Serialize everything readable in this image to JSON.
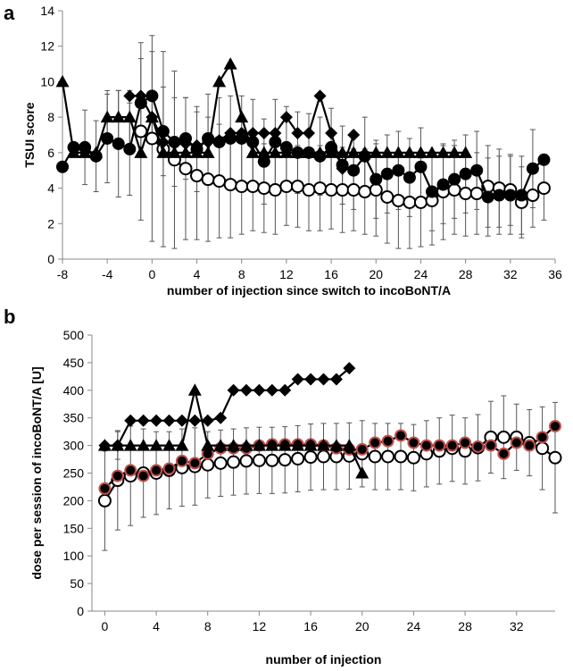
{
  "chart_data": [
    {
      "panel": "a",
      "type": "line",
      "title": "",
      "xlabel": "number of injection since switch to incoBoNT/A",
      "ylabel": "TSUI score",
      "xlim": [
        -8,
        36
      ],
      "ylim": [
        0,
        14
      ],
      "x_ticks": [
        "-8",
        "-4",
        "0",
        "4",
        "8",
        "12",
        "16",
        "20",
        "24",
        "28",
        "32",
        "36"
      ],
      "y_ticks": [
        "0",
        "2",
        "4",
        "6",
        "8",
        "10",
        "12",
        "14"
      ],
      "grid": false,
      "legend": "none",
      "series": [
        {
          "name": "open circles",
          "marker": "circle-open",
          "x": [
            -1,
            0,
            1,
            2,
            3,
            4,
            5,
            6,
            7,
            8,
            9,
            10,
            11,
            12,
            13,
            14,
            15,
            16,
            17,
            18,
            19,
            20,
            21,
            22,
            23,
            24,
            25,
            26,
            27,
            28,
            29,
            30,
            31,
            32,
            33,
            34,
            35
          ],
          "values": [
            7.2,
            6.8,
            6.2,
            5.6,
            5.1,
            4.7,
            4.5,
            4.4,
            4.2,
            4.1,
            4.1,
            4.0,
            3.9,
            4.1,
            4.1,
            3.9,
            4.0,
            3.9,
            3.9,
            3.9,
            3.8,
            3.9,
            3.5,
            3.3,
            3.2,
            3.2,
            3.3,
            3.8,
            3.9,
            3.7,
            3.7,
            4.1,
            4.0,
            3.9,
            3.2,
            3.6,
            4.0
          ],
          "error": [
            5.0,
            5.8,
            5.5,
            5.0,
            4.0,
            3.6,
            3.5,
            3.2,
            3.0,
            2.7,
            2.5,
            2.5,
            2.5,
            2.2,
            2.3,
            2.3,
            2.4,
            2.2,
            2.4,
            2.3,
            2.4,
            2.6,
            2.6,
            2.7,
            2.6,
            2.5,
            2.5,
            2.7,
            2.5,
            2.4,
            2.3,
            2.3,
            2.2,
            2.0,
            2.0,
            1.8,
            1.8
          ]
        },
        {
          "name": "filled circles",
          "marker": "circle-filled",
          "x": [
            -8,
            -7,
            -6,
            -5,
            -4,
            -3,
            -2,
            -1,
            0,
            1,
            2,
            3,
            4,
            5,
            6,
            7,
            8,
            9,
            10,
            11,
            12,
            13,
            14,
            15,
            16,
            17,
            18,
            19,
            20,
            21,
            22,
            23,
            24,
            25,
            26,
            27,
            28,
            29,
            30,
            31,
            32,
            33,
            34,
            35
          ],
          "values": [
            5.2,
            6.3,
            6.3,
            5.8,
            6.8,
            6.5,
            6.2,
            8.8,
            9.2,
            7.2,
            6.6,
            6.8,
            6.2,
            6.8,
            6.6,
            6.8,
            6.8,
            6.6,
            5.5,
            6.6,
            6.3,
            6.0,
            6.0,
            5.8,
            6.3,
            5.3,
            5.0,
            5.8,
            4.5,
            4.8,
            5.0,
            4.6,
            5.2,
            3.8,
            4.2,
            4.5,
            4.8,
            5.0,
            3.5,
            3.6,
            3.6,
            3.6,
            5.1,
            5.6
          ],
          "error": [
            0,
            0,
            2.1,
            2.0,
            2.5,
            3.0,
            2.6,
            2.5,
            2.5,
            2.5,
            2.5,
            2.3,
            2.4,
            2.5,
            2.5,
            2.4,
            2.4,
            2.4,
            2.4,
            2.4,
            2.3,
            2.3,
            2.2,
            2.2,
            2.2,
            2.2,
            2.2,
            2.2,
            2.2,
            2.2,
            2.2,
            2.2,
            2.2,
            2.2,
            2.2,
            2.2,
            2.2,
            2.2,
            2.2,
            2.2,
            2.2,
            2.2,
            2.2,
            0
          ]
        },
        {
          "name": "filled diamonds",
          "marker": "diamond",
          "x": [
            -2,
            -1,
            0,
            1,
            2,
            3,
            4,
            5,
            6,
            7,
            8,
            9,
            10,
            11,
            12,
            13,
            14,
            15,
            16,
            17,
            18
          ],
          "values": [
            9.2,
            9.2,
            8.0,
            6.6,
            6.5,
            6.5,
            6.4,
            6.6,
            6.7,
            7.1,
            7.1,
            7.1,
            7.1,
            7.1,
            8.0,
            7.1,
            7.1,
            9.2,
            7.1,
            5.1,
            7.0
          ],
          "error": []
        },
        {
          "name": "filled triangles",
          "marker": "triangle",
          "x": [
            -8,
            -7,
            -6,
            -5,
            -4,
            -3,
            -2,
            -1,
            0,
            1,
            2,
            3,
            4,
            5,
            6,
            7,
            8,
            9,
            10,
            11,
            12,
            13,
            14,
            15,
            16,
            17,
            18,
            19,
            20,
            21,
            22,
            23,
            24,
            25,
            26,
            27,
            28
          ],
          "values": [
            10.0,
            6.0,
            6.0,
            6.0,
            8.0,
            8.0,
            8.0,
            6.0,
            8.0,
            6.0,
            6.0,
            6.0,
            6.0,
            6.0,
            10.0,
            11.0,
            8.0,
            6.0,
            6.0,
            6.0,
            6.0,
            6.0,
            6.0,
            6.0,
            6.0,
            6.0,
            6.0,
            6.0,
            6.0,
            6.0,
            6.0,
            6.0,
            6.0,
            6.0,
            6.0,
            6.0,
            6.0
          ],
          "error": [
            0,
            0,
            0,
            0,
            1.5,
            1.5,
            1.5,
            0,
            0,
            0,
            0,
            0,
            0,
            0,
            0,
            0,
            0,
            0,
            0,
            0,
            0,
            0,
            0,
            0,
            0,
            0,
            0,
            0,
            0,
            0,
            0,
            0,
            0,
            0,
            0,
            0,
            0
          ]
        }
      ]
    },
    {
      "panel": "b",
      "type": "line",
      "title": "",
      "xlabel": "number of injection",
      "ylabel": "dose per session of incoBoNT/A [U]",
      "xlim": [
        -1,
        35
      ],
      "ylim": [
        0,
        500
      ],
      "x_ticks": [
        "0",
        "4",
        "8",
        "12",
        "16",
        "20",
        "24",
        "28",
        "32"
      ],
      "y_ticks": [
        "0",
        "50",
        "100",
        "150",
        "200",
        "250",
        "300",
        "350",
        "400",
        "450",
        "500"
      ],
      "grid": false,
      "legend": "none",
      "series": [
        {
          "name": "open circles",
          "marker": "circle-open",
          "x": [
            0,
            1,
            2,
            3,
            4,
            5,
            6,
            7,
            8,
            9,
            10,
            11,
            12,
            13,
            14,
            15,
            16,
            17,
            18,
            19,
            20,
            21,
            22,
            23,
            24,
            25,
            26,
            27,
            28,
            29,
            30,
            31,
            32,
            33,
            34,
            35
          ],
          "values": [
            200,
            237,
            245,
            250,
            250,
            255,
            260,
            262,
            265,
            268,
            270,
            272,
            273,
            273,
            274,
            276,
            279,
            280,
            280,
            281,
            285,
            280,
            280,
            280,
            278,
            285,
            290,
            295,
            290,
            296,
            315,
            315,
            315,
            305,
            295,
            278
          ],
          "error": [
            90,
            90,
            90,
            80,
            75,
            70,
            70,
            70,
            60,
            60,
            60,
            60,
            60,
            60,
            60,
            60,
            60,
            60,
            60,
            60,
            60,
            60,
            60,
            60,
            60,
            60,
            60,
            60,
            60,
            60,
            65,
            75,
            60,
            60,
            75,
            100
          ]
        },
        {
          "name": "red-ringed filled circles",
          "marker": "circle-red",
          "x": [
            0,
            1,
            2,
            3,
            4,
            5,
            6,
            7,
            8,
            9,
            10,
            11,
            12,
            13,
            14,
            15,
            16,
            17,
            18,
            19,
            20,
            21,
            22,
            23,
            24,
            25,
            26,
            27,
            28,
            29,
            30,
            31,
            32,
            33,
            34,
            35
          ],
          "values": [
            222,
            245,
            255,
            245,
            255,
            258,
            272,
            268,
            285,
            295,
            295,
            295,
            300,
            302,
            302,
            302,
            302,
            300,
            295,
            293,
            293,
            305,
            308,
            318,
            305,
            300,
            300,
            300,
            305,
            298,
            300,
            285,
            305,
            300,
            315,
            335
          ],
          "error": []
        },
        {
          "name": "filled diamonds",
          "marker": "diamond",
          "x": [
            0,
            1,
            2,
            3,
            4,
            5,
            6,
            7,
            8,
            9,
            10,
            11,
            12,
            13,
            14,
            15,
            16,
            17,
            18,
            19
          ],
          "values": [
            300,
            300,
            345,
            345,
            345,
            345,
            345,
            345,
            345,
            350,
            400,
            400,
            400,
            400,
            400,
            420,
            420,
            420,
            420,
            440
          ],
          "error": [
            0,
            25,
            0,
            0,
            0,
            0,
            0,
            0,
            0,
            0,
            0,
            0,
            0,
            0,
            0,
            0,
            0,
            0,
            0,
            0
          ]
        },
        {
          "name": "filled triangles",
          "marker": "triangle",
          "x": [
            0,
            1,
            2,
            3,
            4,
            5,
            6,
            7,
            8,
            9,
            10,
            11,
            12,
            13,
            14,
            15,
            16,
            17,
            18,
            19,
            20
          ],
          "values": [
            300,
            300,
            300,
            300,
            300,
            300,
            300,
            400,
            300,
            300,
            300,
            300,
            300,
            300,
            300,
            300,
            300,
            300,
            300,
            300,
            250
          ],
          "error": []
        }
      ]
    }
  ]
}
